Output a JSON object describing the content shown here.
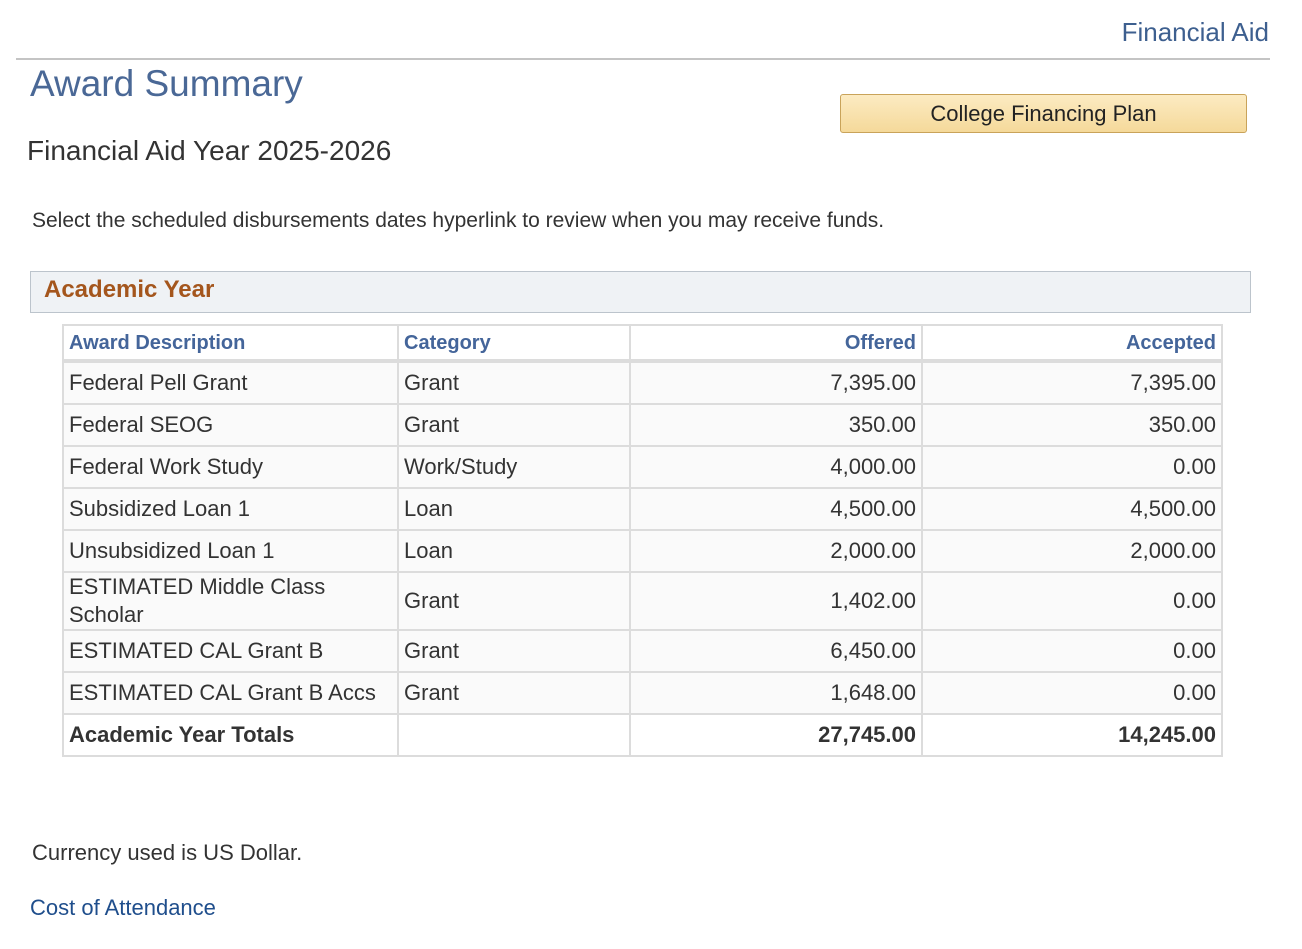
{
  "header": {
    "link": "Financial Aid"
  },
  "page": {
    "title": "Award Summary",
    "button": "College Financing Plan",
    "aid_year": "Financial Aid Year 2025-2026",
    "instruction": "Select the scheduled disbursements dates hyperlink to review when you may receive funds."
  },
  "section": {
    "title": "Academic Year"
  },
  "table": {
    "columns": [
      "Award Description",
      "Category",
      "Offered",
      "Accepted"
    ],
    "rows": [
      [
        "Federal Pell Grant",
        "Grant",
        "7,395.00",
        "7,395.00"
      ],
      [
        "Federal SEOG",
        "Grant",
        "350.00",
        "350.00"
      ],
      [
        "Federal Work Study",
        "Work/Study",
        "4,000.00",
        "0.00"
      ],
      [
        "Subsidized Loan 1",
        "Loan",
        "4,500.00",
        "4,500.00"
      ],
      [
        "Unsubsidized Loan 1",
        "Loan",
        "2,000.00",
        "2,000.00"
      ],
      [
        "ESTIMATED Middle Class Scholar",
        "Grant",
        "1,402.00",
        "0.00"
      ],
      [
        "ESTIMATED CAL Grant B",
        "Grant",
        "6,450.00",
        "0.00"
      ],
      [
        "ESTIMATED CAL Grant B Accs",
        "Grant",
        "1,648.00",
        "0.00"
      ]
    ],
    "totals": {
      "label": "Academic Year Totals",
      "offered": "27,745.00",
      "accepted": "14,245.00"
    }
  },
  "footer": {
    "currency_note": "Currency used is US Dollar.",
    "link": "Cost of Attendance"
  }
}
